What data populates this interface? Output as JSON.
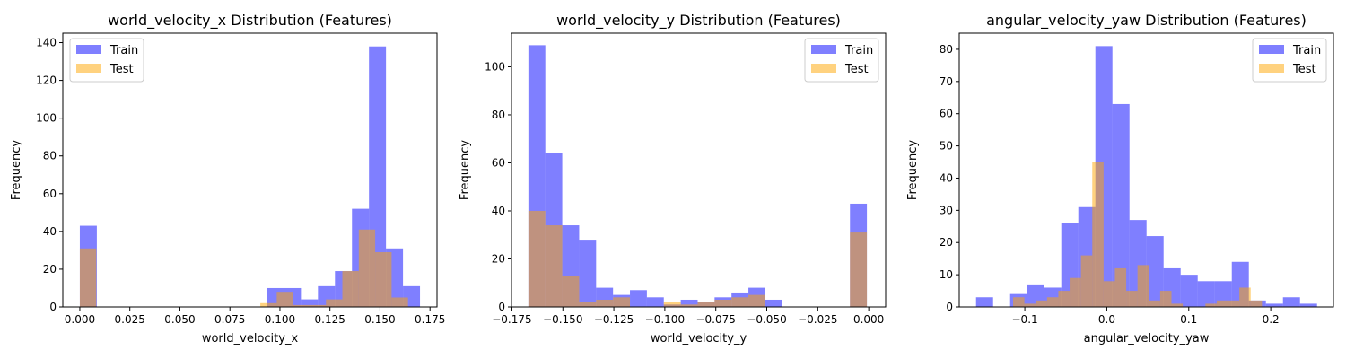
{
  "chart_data": [
    {
      "type": "histogram",
      "title": "world_velocity_x Distribution (Features)",
      "xlabel": "world_velocity_x",
      "ylabel": "Frequency",
      "xlim": [
        -0.0085,
        0.1785
      ],
      "ylim": [
        0,
        145
      ],
      "xticks": [
        0.0,
        0.025,
        0.05,
        0.075,
        0.1,
        0.125,
        0.15,
        0.175
      ],
      "xtick_labels": [
        "0.000",
        "0.025",
        "0.050",
        "0.075",
        "0.100",
        "0.125",
        "0.150",
        "0.175"
      ],
      "yticks": [
        0,
        20,
        40,
        60,
        80,
        100,
        120,
        140
      ],
      "ytick_labels": [
        "0",
        "20",
        "40",
        "60",
        "80",
        "100",
        "120",
        "140"
      ],
      "legend_position": "upper-left",
      "series": [
        {
          "name": "Train",
          "color": "#0000ff",
          "alpha": 0.5,
          "bin_edges": [
            0.0,
            0.0085,
            0.017,
            0.0255,
            0.034,
            0.0425,
            0.051,
            0.0595,
            0.068,
            0.0765,
            0.085,
            0.0935,
            0.102,
            0.1105,
            0.119,
            0.1275,
            0.136,
            0.1445,
            0.153,
            0.1615,
            0.17
          ],
          "counts": [
            43,
            0,
            0,
            0,
            0,
            0,
            0,
            0,
            0,
            0,
            0,
            10,
            10,
            4,
            11,
            19,
            52,
            138,
            31,
            11
          ]
        },
        {
          "name": "Test",
          "color": "#ffa500",
          "alpha": 0.5,
          "bin_edges": [
            0.0,
            0.0082,
            0.0164,
            0.0246,
            0.0328,
            0.041,
            0.0492,
            0.0574,
            0.0656,
            0.0738,
            0.082,
            0.0902,
            0.0984,
            0.1066,
            0.1148,
            0.123,
            0.1312,
            0.1394,
            0.1476,
            0.1558,
            0.164
          ],
          "counts": [
            31,
            0,
            0,
            0,
            0,
            0,
            0,
            0,
            0,
            0,
            0,
            2,
            8,
            1,
            1,
            4,
            19,
            41,
            29,
            5
          ]
        }
      ]
    },
    {
      "type": "histogram",
      "title": "world_velocity_y Distribution (Features)",
      "xlabel": "world_velocity_y",
      "ylabel": "Frequency",
      "xlim": [
        -0.1752,
        0.0083
      ],
      "ylim": [
        0,
        114
      ],
      "xticks": [
        -0.175,
        -0.15,
        -0.125,
        -0.1,
        -0.075,
        -0.05,
        -0.025,
        0.0
      ],
      "xtick_labels": [
        "−0.175",
        "−0.150",
        "−0.125",
        "−0.100",
        "−0.075",
        "−0.050",
        "−0.025",
        "0.000"
      ],
      "yticks": [
        0,
        20,
        40,
        60,
        80,
        100
      ],
      "ytick_labels": [
        "0",
        "20",
        "40",
        "60",
        "80",
        "100"
      ],
      "legend_position": "upper-right",
      "series": [
        {
          "name": "Train",
          "color": "#0000ff",
          "alpha": 0.5,
          "bin_edges": [
            -0.1669,
            -0.1586,
            -0.1503,
            -0.142,
            -0.1337,
            -0.1254,
            -0.1171,
            -0.1088,
            -0.1005,
            -0.0922,
            -0.0839,
            -0.0756,
            -0.0673,
            -0.059,
            -0.0507,
            -0.0424,
            -0.0341,
            -0.0258,
            -0.0175,
            -0.0092,
            -0.0009
          ],
          "counts": [
            109,
            64,
            34,
            28,
            8,
            5,
            7,
            4,
            1,
            3,
            2,
            4,
            6,
            8,
            3,
            0,
            0,
            0,
            0,
            43
          ]
        },
        {
          "name": "Test",
          "color": "#ffa500",
          "alpha": 0.5,
          "bin_edges": [
            -0.1669,
            -0.1586,
            -0.1503,
            -0.142,
            -0.1337,
            -0.1254,
            -0.1171,
            -0.1088,
            -0.1005,
            -0.0922,
            -0.0839,
            -0.0756,
            -0.0673,
            -0.059,
            -0.0507,
            -0.0424,
            -0.0341,
            -0.0258,
            -0.0175,
            -0.0092,
            -0.0009
          ],
          "counts": [
            40,
            34,
            13,
            2,
            3,
            4,
            0,
            0,
            2,
            1,
            2,
            3,
            4,
            5,
            0,
            0,
            0,
            0,
            0,
            31
          ]
        }
      ]
    },
    {
      "type": "histogram",
      "title": "angular_velocity_yaw Distribution (Features)",
      "xlabel": "angular_velocity_yaw",
      "ylabel": "Frequency",
      "xlim": [
        -0.18,
        0.2765
      ],
      "ylim": [
        0,
        85
      ],
      "xticks": [
        -0.1,
        0.0,
        0.1,
        0.2
      ],
      "xtick_labels": [
        "−0.1",
        "0.0",
        "0.1",
        "0.2"
      ],
      "yticks": [
        0,
        10,
        20,
        30,
        40,
        50,
        60,
        70,
        80
      ],
      "ytick_labels": [
        "0",
        "10",
        "20",
        "30",
        "40",
        "50",
        "60",
        "70",
        "80"
      ],
      "legend_position": "upper-right",
      "series": [
        {
          "name": "Train",
          "color": "#0000ff",
          "alpha": 0.5,
          "bin_edges": [
            -0.1595,
            -0.1387,
            -0.1179,
            -0.0971,
            -0.0763,
            -0.0555,
            -0.0347,
            -0.0139,
            0.0069,
            0.0277,
            0.0485,
            0.0693,
            0.0901,
            0.1109,
            0.1317,
            0.1525,
            0.1733,
            0.1941,
            0.2149,
            0.2357,
            0.2565
          ],
          "counts": [
            3,
            0,
            4,
            7,
            6,
            26,
            31,
            81,
            63,
            27,
            22,
            12,
            10,
            8,
            8,
            14,
            2,
            1,
            3,
            1
          ]
        },
        {
          "name": "Test",
          "color": "#ffa500",
          "alpha": 0.5,
          "bin_edges": [
            -0.1143,
            -0.1005,
            -0.0867,
            -0.0729,
            -0.0591,
            -0.0453,
            -0.0315,
            -0.0177,
            -0.0039,
            0.0099,
            0.0237,
            0.0375,
            0.0513,
            0.0651,
            0.0789,
            0.0927,
            0.1065,
            0.1203,
            0.1341,
            0.1479,
            0.1617,
            0.1755,
            0.1893
          ],
          "counts": [
            3,
            1,
            2,
            3,
            5,
            9,
            16,
            45,
            8,
            12,
            5,
            13,
            2,
            5,
            1,
            0,
            0,
            1,
            2,
            2,
            6,
            2
          ]
        }
      ]
    }
  ]
}
